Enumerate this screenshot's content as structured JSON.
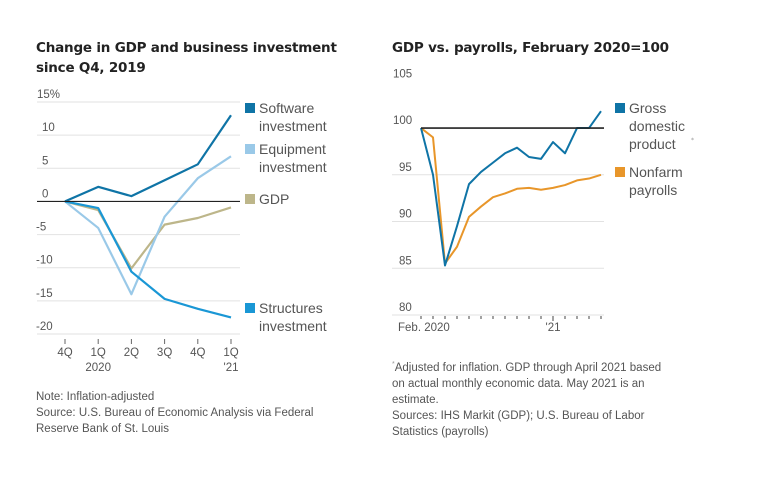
{
  "left": {
    "title_line1": "Change in GDP and business investment",
    "title_line2": "since Q4, 2019",
    "notes": [
      "Note: Inflation-adjusted",
      "Source: U.S. Bureau of Economic Analysis via Federal",
      "Reserve Bank of St. Louis"
    ]
  },
  "right": {
    "title": "GDP vs. payrolls, February 2020=100",
    "notes": [
      "Adjusted for inflation. GDP through April 2021 based",
      "on actual monthly economic data. May 2021 is an",
      "estimate.",
      "Sources: IHS Markit (GDP); U.S. Bureau of Labor",
      "Statistics (payrolls)"
    ],
    "footnote_marker": "*"
  },
  "chart_data": [
    {
      "type": "line",
      "title": "Change in GDP and business investment since Q4, 2019",
      "xlabel": "",
      "ylabel": "",
      "ylim": [
        -20,
        15
      ],
      "yticks": [
        15,
        10,
        5,
        0,
        -5,
        -10,
        -15,
        -20
      ],
      "ytick_labels": [
        "15%",
        "10",
        "5",
        "0",
        "-5",
        "-10",
        "-15",
        "-20"
      ],
      "categories": [
        "4Q",
        "1Q",
        "2Q",
        "3Q",
        "4Q",
        "1Q"
      ],
      "xtick_sublabels": [
        "",
        "2020",
        "",
        "",
        "",
        "'21"
      ],
      "grid": true,
      "baseline": 0,
      "legend": "right",
      "series": [
        {
          "name": "Software investment",
          "legend_lines": [
            "Software",
            "investment"
          ],
          "color": "#0f74a6",
          "values": [
            0,
            2.2,
            0.8,
            3.2,
            5.6,
            13.0
          ]
        },
        {
          "name": "Equipment investment",
          "legend_lines": [
            "Equipment",
            "investment"
          ],
          "color": "#9ac9e8",
          "values": [
            0,
            -4.0,
            -14.0,
            -2.3,
            3.5,
            6.8
          ]
        },
        {
          "name": "GDP",
          "legend_lines": [
            "GDP"
          ],
          "color": "#bdb68a",
          "values": [
            0,
            -1.3,
            -10.1,
            -3.5,
            -2.5,
            -0.9
          ]
        },
        {
          "name": "Structures investment",
          "legend_lines": [
            "Structures",
            "investment"
          ],
          "color": "#1a97d5",
          "values": [
            0,
            -1.0,
            -10.6,
            -14.7,
            -16.2,
            -17.5
          ]
        }
      ]
    },
    {
      "type": "line",
      "title": "GDP vs. payrolls, February 2020=100",
      "xlabel": "",
      "ylabel": "",
      "ylim": [
        80,
        105
      ],
      "yticks": [
        105,
        100,
        95,
        90,
        85,
        80
      ],
      "ytick_labels": [
        "105",
        "100",
        "95",
        "90",
        "85",
        "80"
      ],
      "x": [
        "Feb 2020",
        "Mar 2020",
        "Apr 2020",
        "May 2020",
        "Jun 2020",
        "Jul 2020",
        "Aug 2020",
        "Sep 2020",
        "Oct 2020",
        "Nov 2020",
        "Dec 2020",
        "Jan 2021",
        "Feb 2021",
        "Mar 2021",
        "Apr 2021",
        "May 2021"
      ],
      "xtick_labels": [
        {
          "index": 0,
          "label": "Feb. 2020"
        },
        {
          "index": 11,
          "label": "'21"
        }
      ],
      "grid": true,
      "baseline": 100,
      "legend": "right",
      "series": [
        {
          "name": "Gross domestic product*",
          "legend_lines": [
            "Gross",
            "domestic",
            "product"
          ],
          "color": "#0f74a6",
          "values": [
            100,
            95.0,
            85.3,
            89.5,
            94.0,
            95.3,
            96.3,
            97.3,
            97.9,
            96.9,
            96.7,
            98.5,
            97.3,
            100.0,
            100.0,
            101.8
          ]
        },
        {
          "name": "Nonfarm payrolls",
          "legend_lines": [
            "Nonfarm",
            "payrolls"
          ],
          "color": "#e8962a",
          "values": [
            100,
            99.0,
            85.5,
            87.3,
            90.5,
            91.6,
            92.6,
            93.0,
            93.5,
            93.6,
            93.4,
            93.6,
            93.9,
            94.4,
            94.6,
            95.0
          ]
        }
      ]
    }
  ]
}
